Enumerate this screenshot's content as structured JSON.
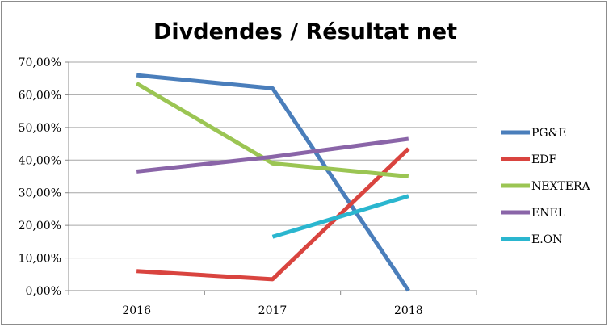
{
  "chart_data": {
    "type": "line",
    "title": "Divdendes / Résultat net",
    "categories": [
      "2016",
      "2017",
      "2018"
    ],
    "ylim": [
      0,
      70
    ],
    "yticks": [
      "0,00%",
      "10,00%",
      "20,00%",
      "30,00%",
      "40,00%",
      "50,00%",
      "60,00%",
      "70,00%"
    ],
    "ytick_values": [
      0,
      10,
      20,
      30,
      40,
      50,
      60,
      70
    ],
    "grid": true,
    "legend_position": "right",
    "series": [
      {
        "name": "PG&E",
        "color": "#4a7ebb",
        "values": [
          66,
          62,
          0
        ]
      },
      {
        "name": "EDF",
        "color": "#d9443f",
        "values": [
          6,
          3.5,
          43.5
        ]
      },
      {
        "name": "NEXTERA",
        "color": "#9bc553",
        "values": [
          63.5,
          39,
          35
        ]
      },
      {
        "name": "ENEL",
        "color": "#8a65a8",
        "values": [
          36.5,
          41,
          46.5
        ]
      },
      {
        "name": "E.ON",
        "color": "#2ab6cf",
        "values": [
          null,
          16.5,
          29
        ]
      }
    ]
  }
}
